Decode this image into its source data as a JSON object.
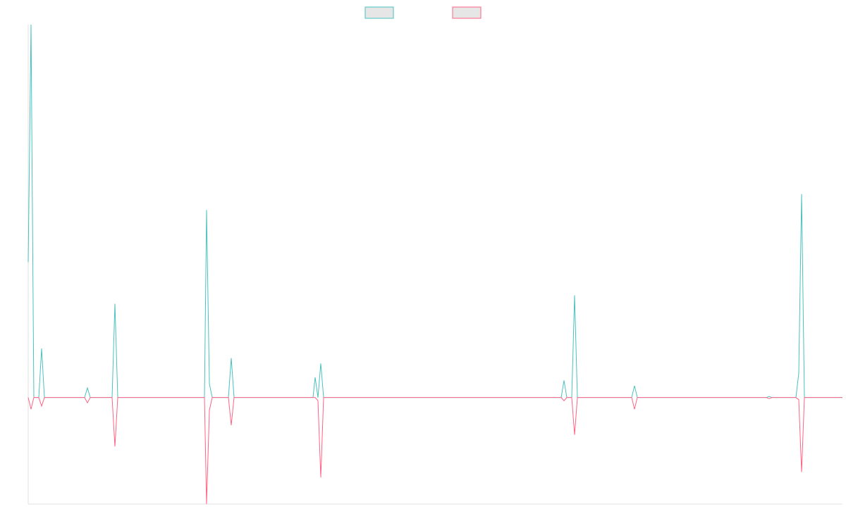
{
  "chart_data": {
    "type": "line",
    "x": [
      0,
      4,
      8,
      15,
      19,
      23,
      80,
      84,
      88,
      119,
      123,
      127,
      250,
      253,
      257,
      261,
      284,
      288,
      292,
      404,
      407,
      411,
      415,
      419,
      756,
      760,
      764,
      771,
      775,
      779,
      856,
      860,
      864,
      1047,
      1051,
      1055,
      1089,
      1093,
      1097,
      1101,
      1155
    ],
    "xlim": [
      0,
      1155
    ],
    "ylim": [
      -100,
      350
    ],
    "legend": "top",
    "series": [
      {
        "color": "#4bc0c0",
        "fill": "#e6e6e6",
        "values": [
          127,
          350,
          0,
          0,
          46,
          0,
          0,
          9,
          0,
          0,
          88,
          0,
          0,
          176,
          13,
          0,
          0,
          37,
          0,
          0,
          19,
          0,
          32,
          0,
          0,
          16,
          0,
          0,
          96,
          0,
          0,
          11,
          0,
          0,
          1,
          0,
          0,
          23,
          191,
          0,
          0
        ]
      },
      {
        "color": "#ff6384",
        "fill": "#e6e6e6",
        "values": [
          0,
          -11,
          0,
          0,
          -8,
          0,
          0,
          -5,
          0,
          0,
          -46,
          0,
          0,
          -100,
          -12,
          0,
          0,
          -26,
          0,
          0,
          0,
          -3,
          -75,
          0,
          0,
          -3,
          0,
          0,
          -35,
          0,
          0,
          -11,
          0,
          0,
          -1,
          0,
          0,
          -2,
          -70,
          0,
          0
        ]
      }
    ]
  }
}
